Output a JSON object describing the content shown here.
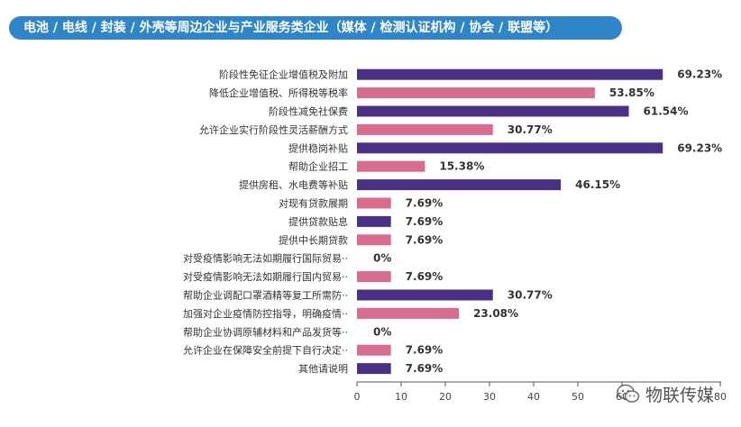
{
  "header": {
    "title": "电池 / 电线 / 封装 / 外壳等周边企业与产业服务类企业（媒体 / 检测认证机构 / 协会 / 联盟等）"
  },
  "watermark": {
    "text": "物联传媒",
    "icon": "wechat-icon"
  },
  "colors": {
    "purple": "#4a3187",
    "pink": "#d96b8f",
    "header": "#2e86c9",
    "label": "#333333"
  },
  "chart_data": {
    "type": "bar",
    "orientation": "horizontal",
    "categories": [
      "阶段性免征企业增值税及附加",
      "降低企业增值税、所得税等税率",
      "阶段性减免社保费",
      "允许企业实行阶段性灵活薪酬方式",
      "提供稳岗补贴",
      "帮助企业招工",
      "提供房租、水电费等补贴",
      "对现有贷款展期",
      "提供贷款贴息",
      "提供中长期贷款",
      "对受疫情影响无法如期履行国际贸易··",
      "对受疫情影响无法如期履行国内贸易··",
      "帮助企业调配口罩酒精等复工所需防··",
      "加强对企业疫情防控指导，明确疫情··",
      "帮助企业协调原辅材料和产品发货等··",
      "允许企业在保障安全前提下自行决定··",
      "其他请说明"
    ],
    "values": [
      69.23,
      53.85,
      61.54,
      30.77,
      69.23,
      15.38,
      46.15,
      7.69,
      7.69,
      7.69,
      0,
      7.69,
      30.77,
      23.08,
      0,
      7.69,
      7.69
    ],
    "data_labels": [
      "69.23%",
      "53.85%",
      "61.54%",
      "30.77%",
      "69.23%",
      "15.38%",
      "46.15%",
      "7.69%",
      "7.69%",
      "7.69%",
      "0%",
      "7.69%",
      "30.77%",
      "23.08%",
      "0%",
      "7.69%",
      "7.69%"
    ],
    "bar_colors": [
      "#4a3187",
      "#d96b8f",
      "#4a3187",
      "#d96b8f",
      "#4a3187",
      "#d96b8f",
      "#4a3187",
      "#d96b8f",
      "#4a3187",
      "#d96b8f",
      "#4a3187",
      "#d96b8f",
      "#4a3187",
      "#d96b8f",
      "#4a3187",
      "#d96b8f",
      "#4a3187"
    ],
    "xticks": [
      "0",
      "10",
      "20",
      "30",
      "40",
      "50",
      "60",
      "80"
    ],
    "xtick_values": [
      0,
      10,
      20,
      30,
      40,
      50,
      60,
      80
    ],
    "xlim": [
      0,
      80
    ],
    "grid": false
  }
}
